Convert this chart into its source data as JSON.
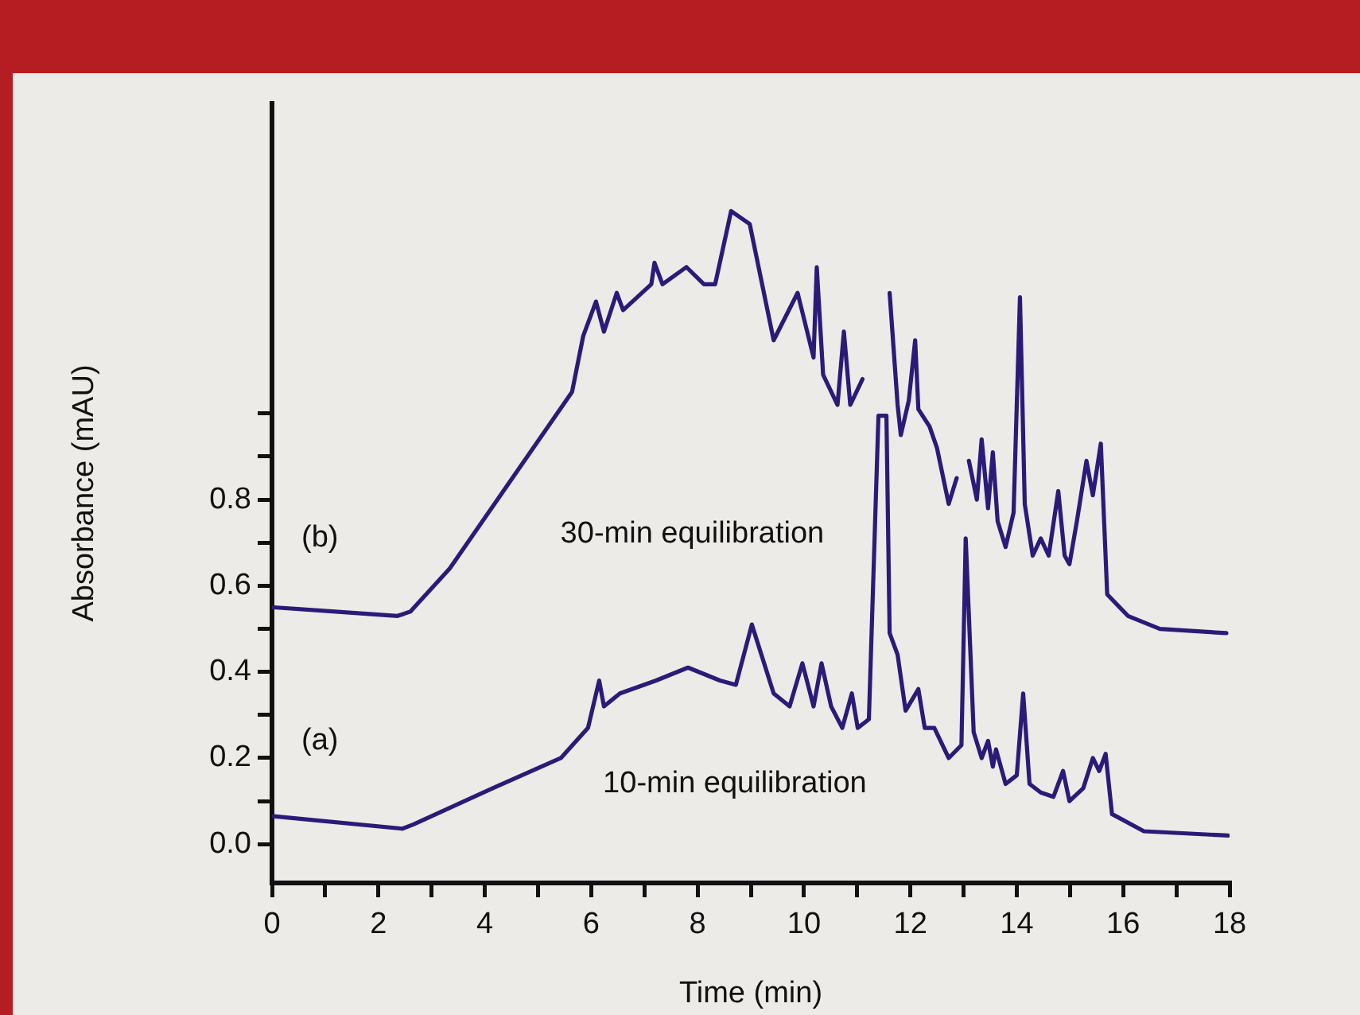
{
  "chart_data": {
    "type": "line",
    "xlabel": "Time (min)",
    "ylabel": "Absorbance (mAU)",
    "xlim": [
      0,
      18
    ],
    "ylim": [
      -0.09,
      1.72
    ],
    "xticks": [
      0,
      {
        "value": 1,
        "label": null
      },
      2,
      {
        "value": 3,
        "label": null
      },
      4,
      {
        "value": 5,
        "label": null
      },
      6,
      {
        "value": 7,
        "label": null
      },
      8,
      {
        "value": 9,
        "label": null
      },
      10,
      {
        "value": 11,
        "label": null
      },
      12,
      {
        "value": 13,
        "label": null
      },
      14,
      {
        "value": 15,
        "label": null
      },
      16,
      {
        "value": 17,
        "label": null
      },
      18
    ],
    "yticks": [
      {
        "value": 0,
        "label": "0.0"
      },
      {
        "value": 0.1,
        "label": null
      },
      0.2,
      {
        "value": 0.3,
        "label": null
      },
      0.4,
      {
        "value": 0.5,
        "label": null
      },
      0.6,
      {
        "value": 0.7,
        "label": null
      },
      0.8,
      {
        "value": 0.9,
        "label": null
      },
      {
        "value": 1.0,
        "label": null
      }
    ],
    "grid": false,
    "legend": false,
    "marker": "none",
    "line_style": "solid",
    "annotations": [
      "(b)",
      "30-min equilibration",
      "(a)",
      "10-min equilibration"
    ],
    "series": [
      {
        "color": "#2b1b78",
        "x": [
          0.03,
          2.36,
          2.6,
          3.34,
          5.64,
          5.85,
          6.09,
          6.24,
          6.48,
          6.6,
          7.13,
          7.19,
          7.34,
          7.79,
          8.12,
          8.33,
          8.63,
          8.98,
          9.43,
          9.88,
          10.18,
          10.24,
          10.36,
          10.63,
          10.75,
          10.87,
          11.1,
          11.31,
          11.55,
          11.61,
          11.76,
          11.82,
          11.97,
          12.09,
          12.15,
          12.36,
          12.5,
          12.72,
          12.87,
          13.01,
          13.1,
          13.25,
          13.34,
          13.46,
          13.55,
          13.64,
          13.79,
          13.94,
          14.06,
          14.15,
          14.3,
          14.45,
          14.6,
          14.78,
          14.9,
          14.99,
          15.13,
          15.31,
          15.43,
          15.58,
          15.7,
          16.09,
          16.69,
          17.94
        ],
        "values": [
          0.55,
          0.53,
          0.54,
          0.64,
          1.05,
          1.18,
          1.26,
          1.19,
          1.28,
          1.24,
          1.3,
          1.35,
          1.3,
          1.34,
          1.3,
          1.3,
          1.47,
          1.44,
          1.17,
          1.28,
          1.13,
          1.34,
          1.09,
          1.02,
          1.19,
          1.02,
          1.08,
          null,
          null,
          1.28,
          1.02,
          0.95,
          1.03,
          1.17,
          1.01,
          0.97,
          0.92,
          0.79,
          0.85,
          null,
          0.89,
          0.8,
          0.94,
          0.78,
          0.91,
          0.75,
          0.69,
          0.77,
          1.27,
          0.79,
          0.67,
          0.71,
          0.67,
          0.82,
          0.67,
          0.65,
          0.75,
          0.89,
          0.81,
          0.93,
          0.58,
          0.53,
          0.5,
          0.49
        ]
      },
      {
        "color": "#2b1b78",
        "x": [
          0.03,
          2.45,
          2.66,
          4.15,
          5.43,
          5.94,
          6.15,
          6.24,
          6.54,
          7.22,
          7.82,
          8.42,
          8.72,
          9.02,
          9.43,
          9.73,
          9.97,
          10.18,
          10.33,
          10.51,
          10.72,
          10.9,
          11.01,
          11.22,
          11.4,
          11.55,
          11.61,
          11.76,
          11.91,
          12.15,
          12.27,
          12.45,
          12.72,
          12.96,
          13.04,
          13.19,
          13.34,
          13.46,
          13.55,
          13.61,
          13.79,
          14.0,
          14.12,
          14.24,
          14.45,
          14.69,
          14.87,
          14.99,
          15.25,
          15.43,
          15.55,
          15.67,
          15.79,
          16.39,
          17.97
        ],
        "values": [
          0.065,
          0.036,
          0.046,
          0.13,
          0.2,
          0.27,
          0.38,
          0.32,
          0.35,
          0.38,
          0.41,
          0.38,
          0.37,
          0.51,
          0.35,
          0.32,
          0.42,
          0.32,
          0.42,
          0.32,
          0.27,
          0.35,
          0.27,
          0.29,
          0.995,
          0.995,
          0.49,
          0.44,
          0.31,
          0.36,
          0.27,
          0.27,
          0.2,
          0.23,
          0.71,
          0.26,
          0.2,
          0.24,
          0.18,
          0.22,
          0.14,
          0.16,
          0.35,
          0.14,
          0.12,
          0.11,
          0.17,
          0.1,
          0.13,
          0.2,
          0.17,
          0.21,
          0.07,
          0.03,
          0.02
        ]
      }
    ]
  }
}
